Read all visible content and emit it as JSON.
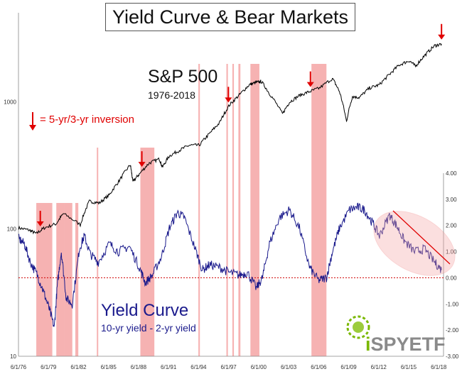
{
  "chart_data": {
    "type": "line",
    "title": "Yield Curve & Bear Markets",
    "x_tick_labels": [
      "6/1/76",
      "6/1/79",
      "6/1/82",
      "6/1/85",
      "6/1/88",
      "6/1/91",
      "6/1/94",
      "6/1/97",
      "6/1/00",
      "6/1/03",
      "6/1/06",
      "6/1/09",
      "6/1/12",
      "6/1/15",
      "6/1/18"
    ],
    "xlim": [
      1976.42,
      2018.9
    ],
    "left_axis": {
      "scale": "log",
      "ylim": [
        10,
        5000
      ],
      "tick_labels": [
        "10",
        "100",
        "1000"
      ]
    },
    "right_axis": {
      "ylim": [
        -3.0,
        4.0
      ],
      "tick_labels": [
        "4.00",
        "3.00",
        "2.00",
        "1.00",
        "0.00",
        "-1.00",
        "-2.00",
        "-3.00"
      ]
    },
    "annotations": {
      "sp_label": "S&P 500",
      "sp_sub": "1976-2018",
      "inversion_legend": "= 5-yr/3-yr inversion",
      "yc_label": "Yield Curve",
      "yc_sub": "10-yr yield - 2-yr yield",
      "logo_prefix": "i",
      "logo_main": "SPYETF"
    },
    "series": [
      {
        "name": "S&P 500",
        "axis": "left",
        "color": "#000000",
        "x": [
          1976.42,
          1977.5,
          1978.2,
          1979.0,
          1980.2,
          1980.9,
          1982.6,
          1983.5,
          1984.5,
          1985.5,
          1986.5,
          1987.6,
          1987.85,
          1988.5,
          1989.5,
          1990.5,
          1990.8,
          1991.5,
          1992.5,
          1993.5,
          1994.5,
          1995.5,
          1996.5,
          1997.5,
          1998.5,
          1999.5,
          2000.2,
          2000.7,
          2001.5,
          2002.8,
          2003.5,
          2004.5,
          2005.5,
          2006.5,
          2007.8,
          2008.5,
          2009.2,
          2009.8,
          2010.5,
          2011.5,
          2012.5,
          2013.5,
          2014.5,
          2015.5,
          2016.1,
          2017.0,
          2018.0,
          2018.7
        ],
        "y": [
          102,
          98,
          92,
          102,
          110,
          132,
          108,
          165,
          160,
          185,
          240,
          320,
          235,
          270,
          330,
          355,
          305,
          375,
          415,
          455,
          455,
          560,
          680,
          940,
          1130,
          1360,
          1420,
          1440,
          1160,
          800,
          990,
          1120,
          1200,
          1280,
          1520,
          1200,
          700,
          1100,
          1080,
          1280,
          1360,
          1640,
          1950,
          2100,
          1900,
          2300,
          2750,
          2850
        ]
      },
      {
        "name": "Yield Curve",
        "axis": "right",
        "color": "#1a1a8c",
        "x": [
          1976.42,
          1977.0,
          1977.6,
          1978.3,
          1978.9,
          1979.5,
          1980.0,
          1980.3,
          1980.7,
          1981.2,
          1981.8,
          1982.5,
          1983.0,
          1983.6,
          1984.4,
          1985.5,
          1986.4,
          1987.5,
          1988.5,
          1989.1,
          1989.8,
          1990.7,
          1991.5,
          1992.3,
          1993.0,
          1994.0,
          1994.8,
          1995.5,
          1996.5,
          1997.5,
          1998.5,
          1999.3,
          2000.2,
          2000.8,
          2001.5,
          2002.5,
          2003.5,
          2004.5,
          2005.5,
          2006.4,
          2007.2,
          2007.8,
          2008.5,
          2009.5,
          2010.3,
          2011.0,
          2011.8,
          2012.5,
          2013.5,
          2014.2,
          2015.0,
          2016.0,
          2017.0,
          2018.0,
          2018.7
        ],
        "y": [
          1.5,
          1.3,
          0.6,
          0.1,
          -0.5,
          -1.2,
          -1.9,
          -0.3,
          1.0,
          -0.8,
          -1.0,
          1.1,
          1.6,
          0.9,
          0.6,
          1.3,
          1.0,
          1.2,
          0.4,
          -0.2,
          0.1,
          0.8,
          1.9,
          2.5,
          2.3,
          1.2,
          0.3,
          0.5,
          0.4,
          0.2,
          0.1,
          0.2,
          -0.4,
          0.0,
          1.3,
          2.3,
          2.6,
          1.9,
          0.4,
          -0.1,
          0.0,
          1.0,
          1.9,
          2.6,
          2.7,
          2.6,
          2.1,
          1.6,
          2.4,
          2.0,
          1.4,
          1.0,
          1.1,
          0.6,
          0.3
        ]
      }
    ],
    "shaded_regions": [
      [
        1978.2,
        1979.8
      ],
      [
        1980.2,
        1981.0
      ],
      [
        1981.0,
        1981.8
      ],
      [
        1982.1,
        1982.4
      ],
      [
        1984.25,
        1984.35
      ],
      [
        1988.6,
        1990.0
      ],
      [
        1994.4,
        1994.55
      ],
      [
        1997.2,
        1997.35
      ],
      [
        1997.8,
        1997.95
      ],
      [
        1998.4,
        1998.6
      ],
      [
        1999.6,
        2000.5
      ],
      [
        2005.7,
        2007.2
      ]
    ],
    "inversion_arrows": [
      1978.6,
      1988.75,
      1997.4,
      2005.6,
      2018.7
    ],
    "zero_line": 0.0
  }
}
